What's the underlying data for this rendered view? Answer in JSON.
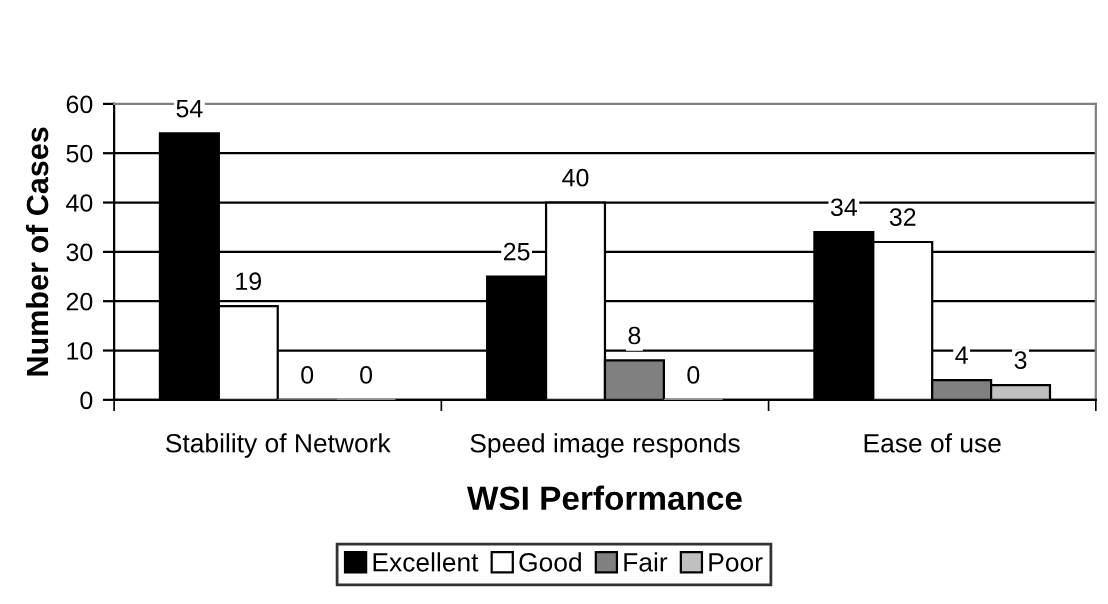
{
  "chart_data": {
    "type": "bar",
    "xlabel": "WSI Performance",
    "ylabel": "Number of Cases",
    "categories": [
      "Stability of Network",
      "Speed image responds",
      "Ease of use"
    ],
    "series": [
      {
        "name": "Excellent",
        "color": "#000000",
        "values": [
          54,
          25,
          34
        ]
      },
      {
        "name": "Good",
        "color": "#ffffff",
        "values": [
          19,
          40,
          32
        ]
      },
      {
        "name": "Fair",
        "color": "#808080",
        "values": [
          0,
          8,
          4
        ]
      },
      {
        "name": "Poor",
        "color": "#c0c0c0",
        "values": [
          0,
          0,
          3
        ]
      }
    ],
    "ylim": [
      0,
      60
    ],
    "yticks": [
      0,
      10,
      20,
      30,
      40,
      50,
      60
    ],
    "grid": "y",
    "legend": "bottom",
    "data_labels": true
  }
}
